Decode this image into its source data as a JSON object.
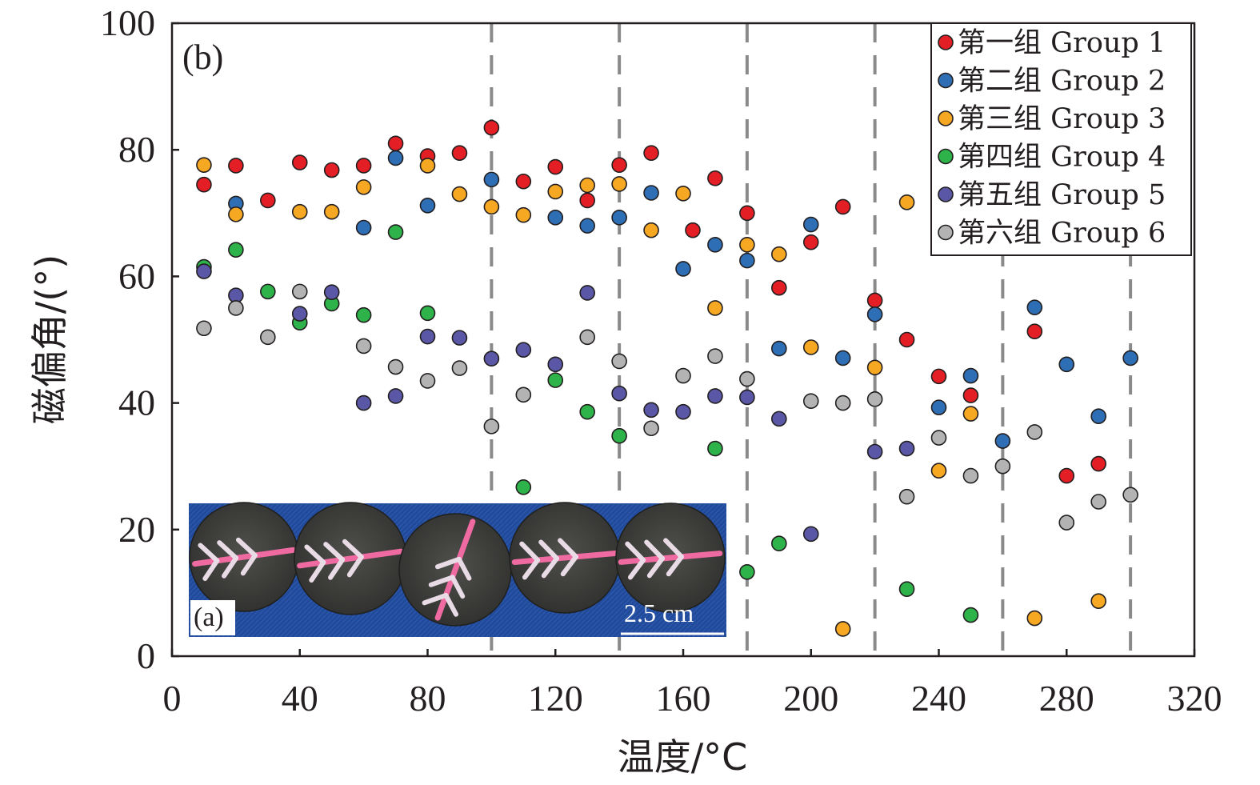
{
  "chart_data": {
    "type": "scatter",
    "panel_label": "(b)",
    "xlabel": "温度/°C",
    "ylabel": "磁偏角/(°)",
    "xlim": [
      0,
      320
    ],
    "ylim": [
      0,
      100
    ],
    "x_ticks": [
      "0",
      "40",
      "80",
      "120",
      "160",
      "200",
      "240",
      "280",
      "320"
    ],
    "y_ticks": [
      "0",
      "20",
      "40",
      "60",
      "80",
      "100"
    ],
    "vertical_dashed_lines": [
      100,
      140,
      180,
      220,
      260,
      300
    ],
    "legend_position": "top-right",
    "series": [
      {
        "name": "第一组 Group 1",
        "color": "#e31e24",
        "points": [
          [
            10,
            74.5
          ],
          [
            20,
            77.5
          ],
          [
            30,
            72
          ],
          [
            40,
            78
          ],
          [
            50,
            76.8
          ],
          [
            60,
            77.5
          ],
          [
            70,
            81
          ],
          [
            80,
            79
          ],
          [
            90,
            79.5
          ],
          [
            100,
            83.5
          ],
          [
            110,
            75
          ],
          [
            120,
            77.3
          ],
          [
            130,
            72
          ],
          [
            140,
            77.6
          ],
          [
            150,
            79.5
          ],
          [
            163,
            67.3
          ],
          [
            170,
            75.5
          ],
          [
            180,
            70
          ],
          [
            190,
            58.2
          ],
          [
            200,
            65.4
          ],
          [
            210,
            71
          ],
          [
            220,
            56.2
          ],
          [
            230,
            50
          ],
          [
            240,
            44.2
          ],
          [
            250,
            41.2
          ],
          [
            270,
            51.3
          ],
          [
            280,
            28.5
          ],
          [
            290,
            30.4
          ]
        ]
      },
      {
        "name": "第二组 Group 2",
        "color": "#2e6eb5",
        "points": [
          [
            20,
            71.5
          ],
          [
            60,
            67.7
          ],
          [
            70,
            78.7
          ],
          [
            80,
            71.2
          ],
          [
            100,
            75.3
          ],
          [
            120,
            69.3
          ],
          [
            130,
            68
          ],
          [
            140,
            69.3
          ],
          [
            150,
            73.2
          ],
          [
            160,
            61.2
          ],
          [
            170,
            65
          ],
          [
            180,
            62.5
          ],
          [
            190,
            48.6
          ],
          [
            200,
            68.2
          ],
          [
            210,
            47.1
          ],
          [
            220,
            54
          ],
          [
            240,
            39.3
          ],
          [
            250,
            44.3
          ],
          [
            260,
            34
          ],
          [
            270,
            55.1
          ],
          [
            280,
            46.1
          ],
          [
            290,
            37.9
          ],
          [
            300,
            47.1
          ]
        ]
      },
      {
        "name": "第三组 Group 3",
        "color": "#f7a823",
        "points": [
          [
            10,
            77.6
          ],
          [
            20,
            69.8
          ],
          [
            40,
            70.2
          ],
          [
            50,
            70.2
          ],
          [
            60,
            74.1
          ],
          [
            80,
            77.5
          ],
          [
            90,
            73
          ],
          [
            100,
            71
          ],
          [
            110,
            69.7
          ],
          [
            120,
            73.4
          ],
          [
            130,
            74.4
          ],
          [
            140,
            74.6
          ],
          [
            150,
            67.3
          ],
          [
            160,
            73.1
          ],
          [
            170,
            55
          ],
          [
            180,
            65
          ],
          [
            190,
            63.5
          ],
          [
            200,
            48.8
          ],
          [
            210,
            4.3
          ],
          [
            220,
            45.6
          ],
          [
            230,
            71.7
          ],
          [
            240,
            29.3
          ],
          [
            250,
            38.3
          ],
          [
            270,
            6
          ],
          [
            290,
            8.7
          ]
        ]
      },
      {
        "name": "第四组 Group 4",
        "color": "#2db34a",
        "points": [
          [
            10,
            61.5
          ],
          [
            20,
            64.2
          ],
          [
            30,
            57.6
          ],
          [
            40,
            52.7
          ],
          [
            50,
            55.7
          ],
          [
            60,
            53.9
          ],
          [
            70,
            67
          ],
          [
            80,
            54.2
          ],
          [
            110,
            26.7
          ],
          [
            120,
            43.6
          ],
          [
            130,
            38.6
          ],
          [
            140,
            34.8
          ],
          [
            170,
            32.8
          ],
          [
            180,
            13.3
          ],
          [
            190,
            17.8
          ],
          [
            230,
            10.6
          ],
          [
            250,
            6.5
          ]
        ]
      },
      {
        "name": "第五组 Group 5",
        "color": "#5a58a6",
        "points": [
          [
            10,
            60.8
          ],
          [
            20,
            57
          ],
          [
            40,
            54.1
          ],
          [
            50,
            57.5
          ],
          [
            60,
            40
          ],
          [
            70,
            41.1
          ],
          [
            80,
            50.5
          ],
          [
            90,
            50.3
          ],
          [
            100,
            47
          ],
          [
            110,
            48.4
          ],
          [
            120,
            46.1
          ],
          [
            130,
            57.4
          ],
          [
            140,
            41.5
          ],
          [
            150,
            38.9
          ],
          [
            160,
            38.6
          ],
          [
            170,
            41.1
          ],
          [
            180,
            40.9
          ],
          [
            190,
            37.5
          ],
          [
            200,
            19.3
          ],
          [
            220,
            32.3
          ],
          [
            230,
            32.8
          ]
        ]
      },
      {
        "name": "第六组 Group 6",
        "color": "#b3b3b3",
        "points": [
          [
            10,
            51.8
          ],
          [
            20,
            55
          ],
          [
            30,
            50.4
          ],
          [
            40,
            57.6
          ],
          [
            60,
            49
          ],
          [
            70,
            45.7
          ],
          [
            80,
            43.5
          ],
          [
            90,
            45.5
          ],
          [
            100,
            36.3
          ],
          [
            110,
            41.3
          ],
          [
            130,
            50.4
          ],
          [
            140,
            46.6
          ],
          [
            150,
            36
          ],
          [
            160,
            44.3
          ],
          [
            170,
            47.4
          ],
          [
            180,
            43.8
          ],
          [
            200,
            40.3
          ],
          [
            210,
            40
          ],
          [
            220,
            40.6
          ],
          [
            230,
            25.2
          ],
          [
            240,
            34.5
          ],
          [
            250,
            28.5
          ],
          [
            260,
            30
          ],
          [
            270,
            35.4
          ],
          [
            280,
            21.1
          ],
          [
            290,
            24.4
          ],
          [
            300,
            25.5
          ]
        ]
      }
    ],
    "inset": {
      "label": "(a)",
      "scale_bar": "2.5 cm"
    }
  }
}
